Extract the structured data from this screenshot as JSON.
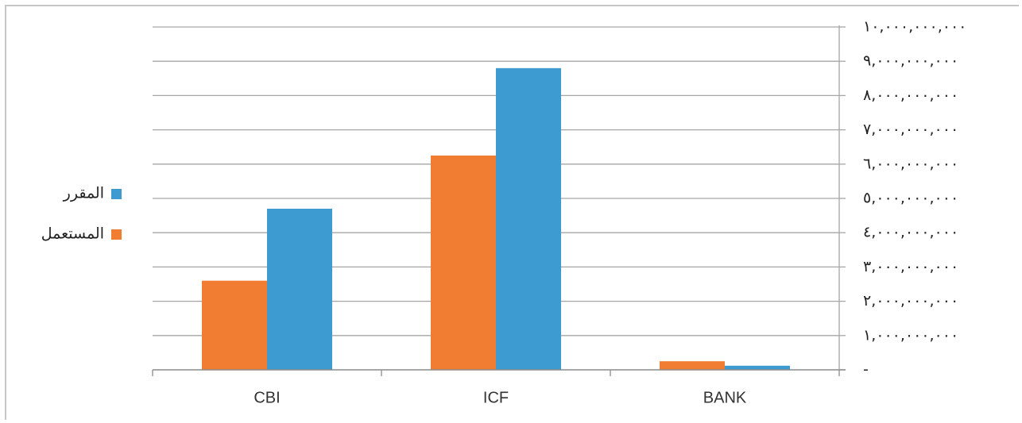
{
  "chart_data": {
    "type": "bar",
    "categories": [
      "CBI",
      "ICF",
      "BANK"
    ],
    "series": [
      {
        "name": "المستعمل",
        "color": "#f07d32",
        "values": [
          2600000000,
          6250000000,
          250000000
        ]
      },
      {
        "name": "المقرر",
        "color": "#3d9bd1",
        "values": [
          4700000000,
          8800000000,
          120000000
        ]
      }
    ],
    "ylim": [
      0,
      10000000000
    ],
    "ytick_values": [
      0,
      1000000000,
      2000000000,
      3000000000,
      4000000000,
      5000000000,
      6000000000,
      7000000000,
      8000000000,
      9000000000,
      10000000000
    ],
    "ytick_labels": [
      "-",
      "١,٠٠٠,٠٠٠,٠٠٠",
      "٢,٠٠٠,٠٠٠,٠٠٠",
      "٣,٠٠٠,٠٠٠,٠٠٠",
      "٤,٠٠٠,٠٠٠,٠٠٠",
      "٥,٠٠٠,٠٠٠,٠٠٠",
      "٦,٠٠٠,٠٠٠,٠٠٠",
      "٧,٠٠٠,٠٠٠,٠٠٠",
      "٨,٠٠٠,٠٠٠,٠٠٠",
      "٩,٠٠٠,٠٠٠,٠٠٠",
      "١٠,٠٠٠,٠٠٠,٠٠٠"
    ],
    "y_axis_side": "right",
    "legend_position": "left",
    "legend_order": [
      "المقرر",
      "المستعمل"
    ],
    "grid": true,
    "gridline_color": "#a6a6a6"
  }
}
